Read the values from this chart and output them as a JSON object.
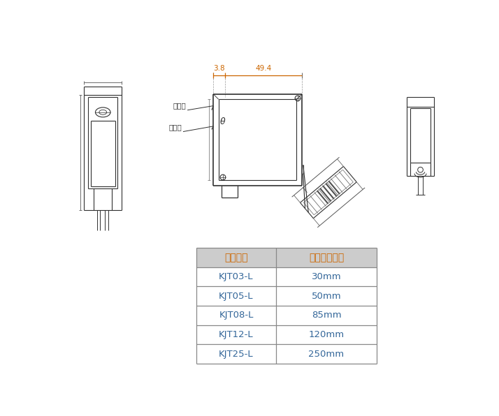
{
  "bg_color": "#ffffff",
  "line_color": "#303030",
  "dim_color": "#cc6600",
  "table_header_bg": "#cccccc",
  "table_header_text_color": "#cc6600",
  "table_cell_text_color": "#336699",
  "table_border_color": "#888888",
  "table_col1_header": "型号名称",
  "table_col2_header": "测定中心距离",
  "table_rows": [
    [
      "KJT03-L",
      "30mm"
    ],
    [
      "KJT05-L",
      "50mm"
    ],
    [
      "KJT08-L",
      "85mm"
    ],
    [
      "KJT12-L",
      "120mm"
    ],
    [
      "KJT25-L",
      "250mm"
    ]
  ],
  "dim1": "3.8",
  "dim2": "49.4",
  "label_touguan": "投光轴",
  "label_shouguan": "受光轴",
  "label_theta": "θ"
}
